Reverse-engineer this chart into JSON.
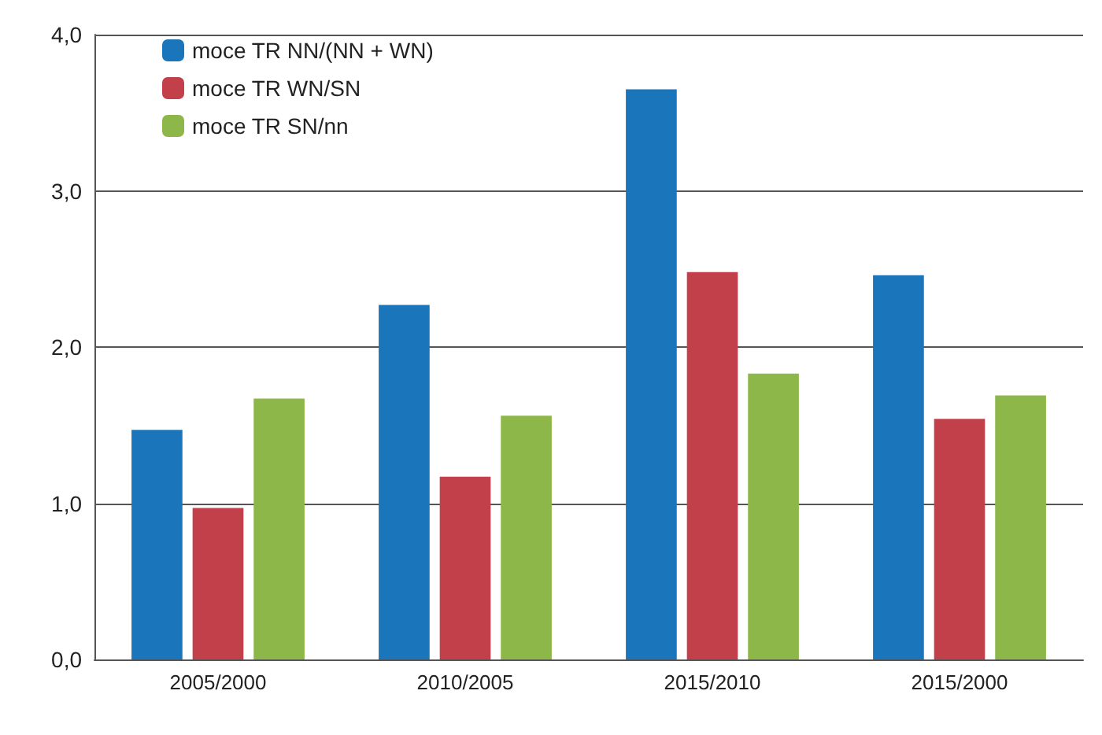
{
  "chart_data": {
    "type": "bar",
    "categories": [
      "2005/2000",
      "2010/2005",
      "2015/2010",
      "2015/2000"
    ],
    "series": [
      {
        "name": "moce TR NN/(NN + WN)",
        "color": "#1b75bb",
        "values": [
          1.47,
          2.27,
          3.65,
          2.46
        ]
      },
      {
        "name": "moce TR WN/SN",
        "color": "#c1404a",
        "values": [
          0.97,
          1.17,
          2.48,
          1.54
        ]
      },
      {
        "name": "moce TR SN/nn",
        "color": "#8db748",
        "values": [
          1.67,
          1.56,
          1.83,
          1.69
        ]
      }
    ],
    "ylim": [
      0,
      4
    ],
    "yticks": [
      {
        "value": 0,
        "label": "0,0"
      },
      {
        "value": 1,
        "label": "1,0"
      },
      {
        "value": 2,
        "label": "2,0"
      },
      {
        "value": 3,
        "label": "3,0"
      },
      {
        "value": 4,
        "label": "4,0"
      }
    ],
    "grid": "y",
    "legend": "top left"
  }
}
